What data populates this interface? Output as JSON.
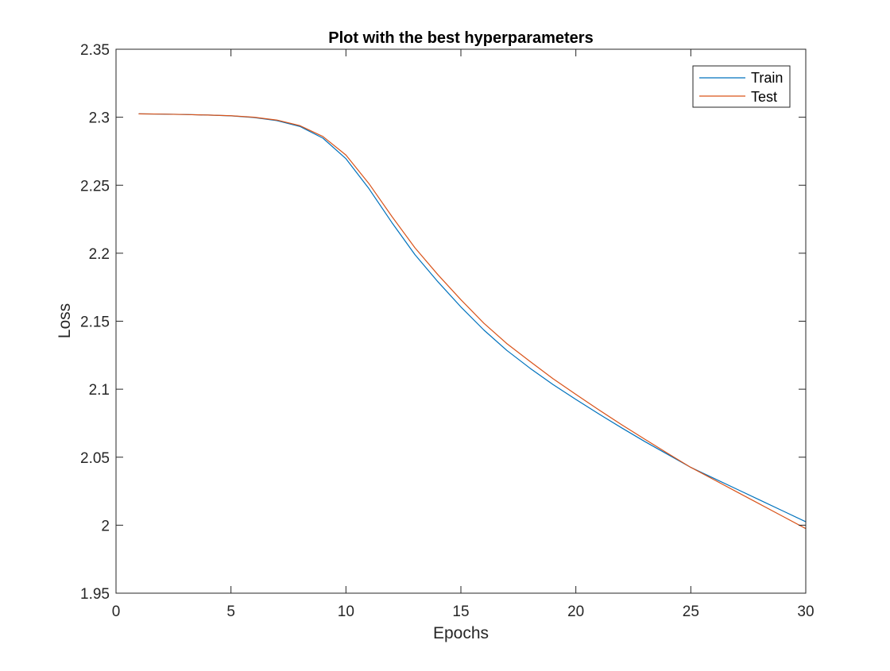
{
  "chart_data": {
    "type": "line",
    "title": "Plot with the best hyperparameters",
    "xlabel": "Epochs",
    "ylabel": "Loss",
    "xlim": [
      0,
      30
    ],
    "ylim": [
      1.95,
      2.35
    ],
    "xticks": [
      0,
      5,
      10,
      15,
      20,
      25,
      30
    ],
    "yticks": [
      1.95,
      2,
      2.05,
      2.1,
      2.15,
      2.2,
      2.25,
      2.3,
      2.35
    ],
    "xtick_labels": [
      "0",
      "5",
      "10",
      "15",
      "20",
      "25",
      "30"
    ],
    "ytick_labels": [
      "1.95",
      "2",
      "2.05",
      "2.1",
      "2.15",
      "2.2",
      "2.25",
      "2.3",
      "2.35"
    ],
    "grid": false,
    "legend": "top-right",
    "x": [
      1,
      2,
      3,
      4,
      5,
      6,
      7,
      8,
      9,
      10,
      11,
      12,
      13,
      14,
      15,
      16,
      17,
      18,
      19,
      20,
      21,
      22,
      23,
      24,
      25,
      26,
      27,
      28,
      29,
      30
    ],
    "series": [
      {
        "name": "Train",
        "color": "#0072BD",
        "values": [
          2.3025,
          2.3023,
          2.302,
          2.3016,
          2.301,
          2.2998,
          2.2975,
          2.2932,
          2.2846,
          2.2695,
          2.2475,
          2.2225,
          2.199,
          2.179,
          2.1605,
          2.1435,
          2.1285,
          2.1155,
          2.1035,
          2.0925,
          2.0818,
          2.0715,
          2.0615,
          2.052,
          2.0425,
          2.0345,
          2.0265,
          2.0185,
          2.0105,
          2.0025
        ]
      },
      {
        "name": "Test",
        "color": "#D95319",
        "values": [
          2.3025,
          2.3023,
          2.302,
          2.3016,
          2.3011,
          2.3,
          2.2979,
          2.2938,
          2.2858,
          2.2722,
          2.2512,
          2.227,
          2.204,
          2.1842,
          2.1658,
          2.1485,
          2.1335,
          2.1205,
          2.1078,
          2.0962,
          2.0848,
          2.0738,
          2.0632,
          2.0528,
          2.0425,
          2.0335,
          2.0245,
          2.0155,
          2.0065,
          1.9975
        ]
      }
    ]
  }
}
